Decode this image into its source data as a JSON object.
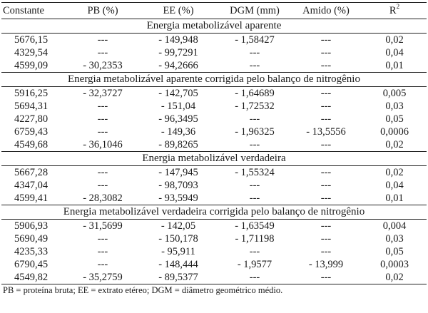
{
  "table": {
    "headers": {
      "constante": "Constante",
      "pb": "PB (%)",
      "ee": "EE (%)",
      "dgm": "DGM (mm)",
      "amido": "Amido (%)",
      "r": "R",
      "r_sup": "2"
    },
    "sections": [
      {
        "title": "Energia metabolizável aparente",
        "rows": [
          [
            "5676,15",
            "---",
            "- 149,948",
            "- 1,58427",
            "---",
            "0,02"
          ],
          [
            "4329,54",
            "---",
            "- 99,7291",
            "---",
            "---",
            "0,04"
          ],
          [
            "4599,09",
            "- 30,2353",
            "- 94,2666",
            "---",
            "---",
            "0,01"
          ]
        ]
      },
      {
        "title": "Energia metabolizável aparente corrigida pelo balanço de nitrogênio",
        "rows": [
          [
            "5916,25",
            "- 32,3727",
            "- 142,705",
            "- 1,64689",
            "---",
            "0,005"
          ],
          [
            "5694,31",
            "---",
            "- 151,04",
            "- 1,72532",
            "---",
            "0,03"
          ],
          [
            "4227,80",
            "---",
            "- 96,3495",
            "---",
            "---",
            "0,05"
          ],
          [
            "6759,43",
            "---",
            "- 149,36",
            "- 1,96325",
            "- 13,5556",
            "0,0006"
          ],
          [
            "4549,68",
            "- 36,1046",
            "- 89,8265",
            "---",
            "---",
            "0,02"
          ]
        ]
      },
      {
        "title": "Energia metabolizável verdadeira",
        "rows": [
          [
            "5667,28",
            "---",
            "- 147,945",
            "- 1,55324",
            "---",
            "0,02"
          ],
          [
            "4347,04",
            "---",
            "- 98,7093",
            "---",
            "---",
            "0,04"
          ],
          [
            "4599,41",
            "- 28,3082",
            "- 93,5949",
            "---",
            "---",
            "0,01"
          ]
        ]
      },
      {
        "title": "Energia metabolizável verdadeira corrigida pelo balanço de nitrogênio",
        "rows": [
          [
            "5906,93",
            "- 31,5699",
            "- 142,05",
            "- 1,63549",
            "---",
            "0,004"
          ],
          [
            "5690,49",
            "---",
            "- 150,178",
            "- 1,71198",
            "---",
            "0,03"
          ],
          [
            "4235,33",
            "---",
            "- 95,911",
            "---",
            "---",
            "0,05"
          ],
          [
            "6790,45",
            "---",
            "- 148,444",
            "- 1,9577",
            "- 13,999",
            "0,0003"
          ],
          [
            "4549,82",
            "- 35,2759",
            "- 89,5377",
            "---",
            "---",
            "0,02"
          ]
        ]
      }
    ]
  },
  "footnote": "PB = proteína bruta; EE = extrato etéreo; DGM = diâmetro geométrico médio."
}
